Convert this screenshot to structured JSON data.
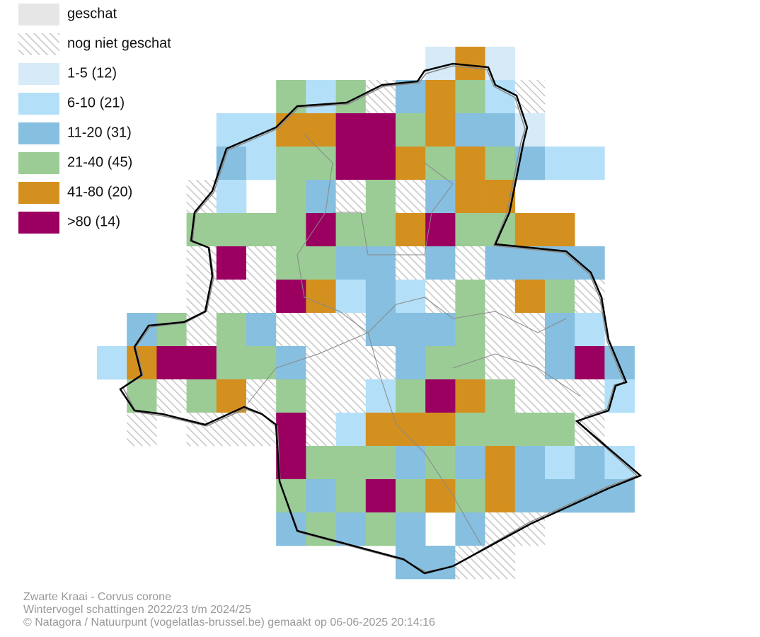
{
  "legend": {
    "items": [
      {
        "label": "geschat"
      },
      {
        "label": "nog niet geschat"
      },
      {
        "label": "1-5 (12)"
      },
      {
        "label": "6-10 (21)"
      },
      {
        "label": "11-20 (31)"
      },
      {
        "label": "21-40 (45)"
      },
      {
        "label": "41-80 (20)"
      },
      {
        "label": ">80 (14)"
      }
    ]
  },
  "footer": {
    "lines": [
      "Zwarte Kraai - Corvus corone",
      "Wintervogel schattingen 2022/23 t/m 2024/25",
      "© Natagora / Natuurpunt (vogelatlas-brussel.be) gemaakt op 06-06-2025 20:14:16"
    ]
  }
}
